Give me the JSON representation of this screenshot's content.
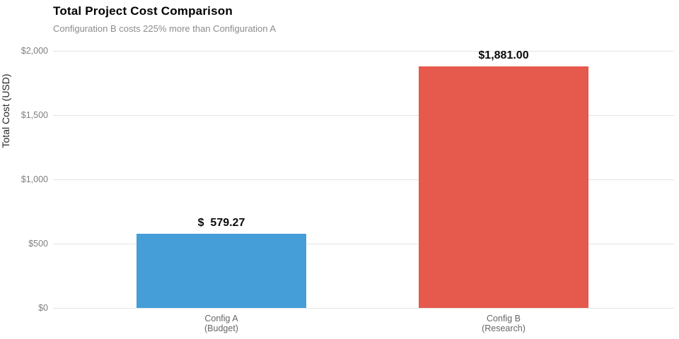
{
  "chart_data": {
    "type": "bar",
    "title": "Total Project Cost Comparison",
    "subtitle": "Configuration B costs 225% more than Configuration A",
    "ylabel": "Total Cost (USD)",
    "xlabel": "",
    "categories": [
      [
        "Config A",
        "(Budget)"
      ],
      [
        "Config B",
        "(Research)"
      ]
    ],
    "values": [
      579.27,
      1881.0
    ],
    "bar_value_labels": [
      "$  579.27",
      "$1,881.00"
    ],
    "bar_colors": [
      "#459ED8",
      "#E6594D"
    ],
    "ylim": [
      0,
      2000
    ],
    "yticks": [
      {
        "value": 0,
        "label": "$0"
      },
      {
        "value": 500,
        "label": "$500"
      },
      {
        "value": 1000,
        "label": "$1,000"
      },
      {
        "value": 1500,
        "label": "$1,500"
      },
      {
        "value": 2000,
        "label": "$2,000"
      }
    ],
    "grid": true,
    "legend": "none",
    "colors": {
      "title": "#000000",
      "subtitle": "#8c8c8c",
      "tick_label": "#808080",
      "category_label": "#666666",
      "gridline": "#e4e4e4",
      "value_label": "#0a0a0a"
    }
  }
}
